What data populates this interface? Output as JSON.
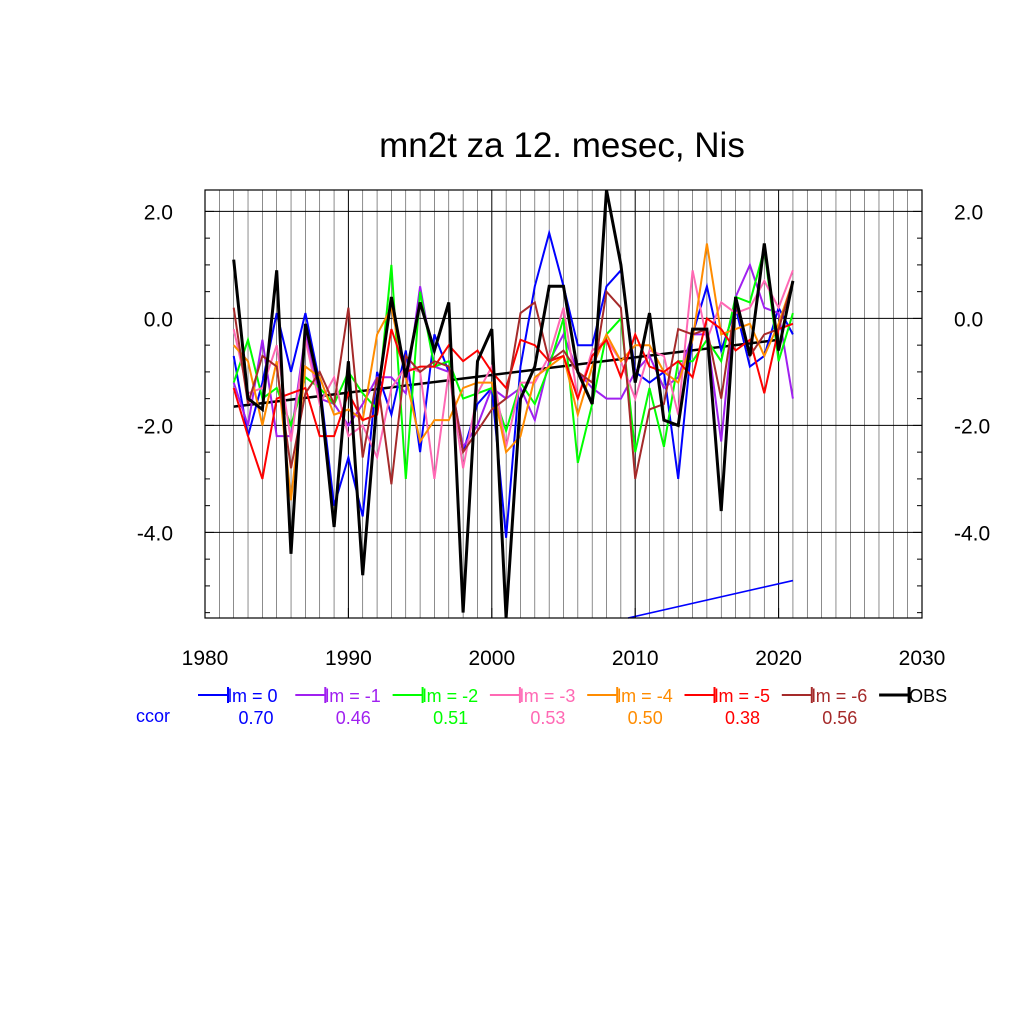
{
  "chart_data": {
    "type": "line",
    "title": "mn2t za 12. mesec, Nis",
    "xlabel": "",
    "ylabel": "",
    "xlim": [
      1980,
      2030
    ],
    "ylim": [
      -5.6,
      2.4
    ],
    "x_ticks": [
      "1980",
      "1990",
      "2000",
      "2010",
      "2020",
      "2030"
    ],
    "y_ticks": [
      "2.0",
      "0.0",
      "-2.0",
      "-4.0"
    ],
    "y_tick_values": [
      2.0,
      0.0,
      -2.0,
      -4.0
    ],
    "x_tick_values": [
      1980,
      1990,
      2000,
      2010,
      2020,
      2030
    ],
    "grid": true,
    "legend_position": "bottom",
    "x": [
      1982,
      1983,
      1984,
      1985,
      1986,
      1987,
      1988,
      1989,
      1990,
      1991,
      1992,
      1993,
      1994,
      1995,
      1996,
      1997,
      1998,
      1999,
      2000,
      2001,
      2002,
      2003,
      2004,
      2005,
      2006,
      2007,
      2008,
      2009,
      2010,
      2011,
      2012,
      2013,
      2014,
      2015,
      2016,
      2017,
      2018,
      2019,
      2020,
      2021
    ],
    "series": [
      {
        "name": "lm = 0",
        "color": "#0000ff",
        "ccor": "0.70",
        "values": [
          -0.7,
          -2.2,
          -1.2,
          0.1,
          -1.0,
          0.1,
          -1.2,
          -3.5,
          -2.6,
          -3.7,
          -1.0,
          -1.8,
          -0.6,
          -2.5,
          -0.3,
          -1.0,
          -2.5,
          -1.6,
          -1.3,
          -4.1,
          -0.9,
          0.6,
          1.6,
          0.6,
          -0.5,
          -0.5,
          0.6,
          0.9,
          -1.0,
          -1.2,
          -1.0,
          -3.0,
          -0.3,
          0.6,
          -0.6,
          0.2,
          -0.9,
          -0.7,
          0.2,
          -0.3
        ]
      },
      {
        "name": "lm = -1",
        "color": "#a020f0",
        "ccor": "0.46",
        "values": [
          -1.2,
          -2.0,
          -0.4,
          -2.2,
          -2.2,
          -0.3,
          -1.5,
          -1.6,
          -2.0,
          -1.6,
          -1.1,
          -1.1,
          -1.4,
          0.6,
          -0.9,
          -1.0,
          -2.4,
          -2.0,
          -1.3,
          -1.5,
          -1.3,
          -1.9,
          -0.8,
          -0.3,
          -1.0,
          -1.3,
          -1.5,
          -1.5,
          -1.0,
          -0.7,
          -1.3,
          -1.1,
          -0.3,
          -0.3,
          -2.3,
          0.4,
          1.0,
          0.2,
          0.1,
          -1.5
        ]
      },
      {
        "name": "lm = -2",
        "color": "#00ff00",
        "ccor": "0.51",
        "values": [
          -1.2,
          -0.4,
          -1.5,
          -1.3,
          -2.0,
          -1.1,
          -1.3,
          -1.6,
          -1.0,
          -1.4,
          -1.7,
          1.0,
          -3.0,
          0.5,
          -0.9,
          -0.8,
          -1.5,
          -1.4,
          -1.3,
          -2.1,
          -1.2,
          -1.6,
          -0.9,
          0.0,
          -2.7,
          -1.6,
          -0.3,
          0.0,
          -2.5,
          -1.3,
          -2.4,
          -0.8,
          -0.8,
          -0.4,
          -0.8,
          0.4,
          0.3,
          1.3,
          -0.8,
          0.1
        ]
      },
      {
        "name": "lm = -3",
        "color": "#ff69b4",
        "ccor": "0.53",
        "values": [
          -0.2,
          -1.4,
          -1.3,
          -0.5,
          -2.3,
          -0.4,
          -1.6,
          -1.1,
          -2.2,
          -2.0,
          -2.6,
          -1.3,
          -0.9,
          -1.0,
          -3.0,
          -1.0,
          -2.8,
          -1.4,
          -0.9,
          -2.4,
          -1.2,
          -1.2,
          -0.7,
          0.2,
          -1.5,
          -0.6,
          -0.4,
          -0.8,
          -1.5,
          -0.6,
          -0.7,
          -1.8,
          0.9,
          -0.4,
          0.3,
          0.1,
          0.2,
          0.7,
          0.2,
          0.9
        ]
      },
      {
        "name": "lm = -4",
        "color": "#ff8c00",
        "ccor": "0.50",
        "values": [
          -0.5,
          -0.8,
          -2.0,
          -0.8,
          -3.4,
          -0.9,
          -1.1,
          -1.8,
          -1.7,
          -1.9,
          -0.3,
          0.2,
          -1.1,
          -2.3,
          -1.9,
          -1.9,
          -1.3,
          -1.2,
          -1.2,
          -2.5,
          -2.2,
          -1.1,
          -0.9,
          -0.7,
          -1.8,
          -0.9,
          -0.3,
          -0.8,
          -0.5,
          -0.5,
          -1.0,
          -1.2,
          -0.4,
          1.4,
          -0.3,
          -0.2,
          -0.1,
          -0.7,
          -0.1,
          0.7
        ]
      },
      {
        "name": "lm = -5",
        "color": "#ff0000",
        "ccor": "0.38",
        "values": [
          -1.3,
          -2.2,
          -3.0,
          -1.5,
          -1.4,
          -1.3,
          -2.2,
          -2.2,
          -1.4,
          -1.9,
          -1.8,
          -0.2,
          -1.0,
          -0.9,
          -0.9,
          -0.5,
          -0.8,
          -0.6,
          -1.0,
          -1.3,
          -0.4,
          -0.5,
          -0.8,
          -0.7,
          -1.5,
          -0.7,
          -0.4,
          -1.1,
          -0.3,
          -0.9,
          -1.0,
          -0.8,
          -1.1,
          0.0,
          -0.2,
          -0.6,
          -0.4,
          -1.4,
          -0.2,
          -0.1
        ]
      },
      {
        "name": "lm = -6",
        "color": "#a52a2a",
        "ccor": "0.56",
        "values": [
          0.2,
          -1.6,
          -0.7,
          -0.9,
          -2.8,
          -1.4,
          -1.0,
          -1.6,
          0.2,
          -2.6,
          -1.1,
          -3.1,
          -0.7,
          -1.0,
          -0.8,
          -0.9,
          -2.5,
          -2.1,
          -1.7,
          -1.5,
          0.1,
          0.3,
          -0.8,
          -0.6,
          -1.0,
          -1.2,
          0.5,
          0.2,
          -3.0,
          -1.7,
          -1.6,
          -0.2,
          -0.3,
          -0.2,
          -1.5,
          0.3,
          -0.7,
          -0.3,
          -0.2,
          0.7
        ]
      },
      {
        "name": "OBS",
        "color": "#000000",
        "ccor": "",
        "values": [
          1.1,
          -1.5,
          -1.7,
          0.9,
          -4.4,
          -0.1,
          -1.3,
          -3.9,
          -0.8,
          -4.8,
          -1.5,
          0.4,
          -1.1,
          0.3,
          -0.6,
          0.3,
          -5.5,
          -0.8,
          -0.2,
          -5.6,
          -1.5,
          -0.9,
          0.6,
          0.6,
          -1.0,
          -1.6,
          2.4,
          1.0,
          -1.2,
          0.1,
          -1.9,
          -2.0,
          -0.2,
          -0.2,
          -3.6,
          0.4,
          -0.7,
          1.4,
          -0.6,
          0.7
        ]
      }
    ],
    "trend_line": {
      "color": "#000000",
      "x": [
        1982,
        2020
      ],
      "y": [
        -1.65,
        -0.4
      ]
    },
    "blue_line": {
      "color": "#0000ff",
      "x": [
        2009.5,
        2021
      ],
      "y": [
        -5.6,
        -4.9
      ]
    },
    "ccor_label": "ccor",
    "ccor_label_color": "#0000ff"
  }
}
